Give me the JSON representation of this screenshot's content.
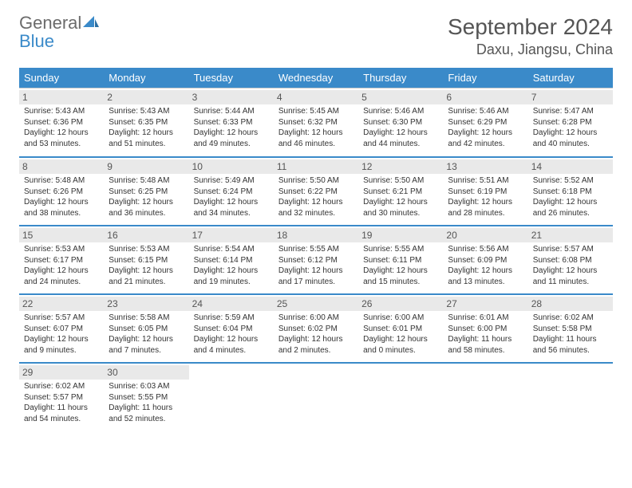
{
  "logo": {
    "word1": "General",
    "word2": "Blue"
  },
  "title": "September 2024",
  "location": "Daxu, Jiangsu, China",
  "colors": {
    "header_bg": "#3a8ac9",
    "header_text": "#ffffff",
    "daynum_bg": "#e9e9e9",
    "text": "#333333",
    "rule": "#3a8ac9"
  },
  "weekdays": [
    "Sunday",
    "Monday",
    "Tuesday",
    "Wednesday",
    "Thursday",
    "Friday",
    "Saturday"
  ],
  "weeks": [
    [
      {
        "n": "1",
        "sr": "Sunrise: 5:43 AM",
        "ss": "Sunset: 6:36 PM",
        "d1": "Daylight: 12 hours",
        "d2": "and 53 minutes."
      },
      {
        "n": "2",
        "sr": "Sunrise: 5:43 AM",
        "ss": "Sunset: 6:35 PM",
        "d1": "Daylight: 12 hours",
        "d2": "and 51 minutes."
      },
      {
        "n": "3",
        "sr": "Sunrise: 5:44 AM",
        "ss": "Sunset: 6:33 PM",
        "d1": "Daylight: 12 hours",
        "d2": "and 49 minutes."
      },
      {
        "n": "4",
        "sr": "Sunrise: 5:45 AM",
        "ss": "Sunset: 6:32 PM",
        "d1": "Daylight: 12 hours",
        "d2": "and 46 minutes."
      },
      {
        "n": "5",
        "sr": "Sunrise: 5:46 AM",
        "ss": "Sunset: 6:30 PM",
        "d1": "Daylight: 12 hours",
        "d2": "and 44 minutes."
      },
      {
        "n": "6",
        "sr": "Sunrise: 5:46 AM",
        "ss": "Sunset: 6:29 PM",
        "d1": "Daylight: 12 hours",
        "d2": "and 42 minutes."
      },
      {
        "n": "7",
        "sr": "Sunrise: 5:47 AM",
        "ss": "Sunset: 6:28 PM",
        "d1": "Daylight: 12 hours",
        "d2": "and 40 minutes."
      }
    ],
    [
      {
        "n": "8",
        "sr": "Sunrise: 5:48 AM",
        "ss": "Sunset: 6:26 PM",
        "d1": "Daylight: 12 hours",
        "d2": "and 38 minutes."
      },
      {
        "n": "9",
        "sr": "Sunrise: 5:48 AM",
        "ss": "Sunset: 6:25 PM",
        "d1": "Daylight: 12 hours",
        "d2": "and 36 minutes."
      },
      {
        "n": "10",
        "sr": "Sunrise: 5:49 AM",
        "ss": "Sunset: 6:24 PM",
        "d1": "Daylight: 12 hours",
        "d2": "and 34 minutes."
      },
      {
        "n": "11",
        "sr": "Sunrise: 5:50 AM",
        "ss": "Sunset: 6:22 PM",
        "d1": "Daylight: 12 hours",
        "d2": "and 32 minutes."
      },
      {
        "n": "12",
        "sr": "Sunrise: 5:50 AM",
        "ss": "Sunset: 6:21 PM",
        "d1": "Daylight: 12 hours",
        "d2": "and 30 minutes."
      },
      {
        "n": "13",
        "sr": "Sunrise: 5:51 AM",
        "ss": "Sunset: 6:19 PM",
        "d1": "Daylight: 12 hours",
        "d2": "and 28 minutes."
      },
      {
        "n": "14",
        "sr": "Sunrise: 5:52 AM",
        "ss": "Sunset: 6:18 PM",
        "d1": "Daylight: 12 hours",
        "d2": "and 26 minutes."
      }
    ],
    [
      {
        "n": "15",
        "sr": "Sunrise: 5:53 AM",
        "ss": "Sunset: 6:17 PM",
        "d1": "Daylight: 12 hours",
        "d2": "and 24 minutes."
      },
      {
        "n": "16",
        "sr": "Sunrise: 5:53 AM",
        "ss": "Sunset: 6:15 PM",
        "d1": "Daylight: 12 hours",
        "d2": "and 21 minutes."
      },
      {
        "n": "17",
        "sr": "Sunrise: 5:54 AM",
        "ss": "Sunset: 6:14 PM",
        "d1": "Daylight: 12 hours",
        "d2": "and 19 minutes."
      },
      {
        "n": "18",
        "sr": "Sunrise: 5:55 AM",
        "ss": "Sunset: 6:12 PM",
        "d1": "Daylight: 12 hours",
        "d2": "and 17 minutes."
      },
      {
        "n": "19",
        "sr": "Sunrise: 5:55 AM",
        "ss": "Sunset: 6:11 PM",
        "d1": "Daylight: 12 hours",
        "d2": "and 15 minutes."
      },
      {
        "n": "20",
        "sr": "Sunrise: 5:56 AM",
        "ss": "Sunset: 6:09 PM",
        "d1": "Daylight: 12 hours",
        "d2": "and 13 minutes."
      },
      {
        "n": "21",
        "sr": "Sunrise: 5:57 AM",
        "ss": "Sunset: 6:08 PM",
        "d1": "Daylight: 12 hours",
        "d2": "and 11 minutes."
      }
    ],
    [
      {
        "n": "22",
        "sr": "Sunrise: 5:57 AM",
        "ss": "Sunset: 6:07 PM",
        "d1": "Daylight: 12 hours",
        "d2": "and 9 minutes."
      },
      {
        "n": "23",
        "sr": "Sunrise: 5:58 AM",
        "ss": "Sunset: 6:05 PM",
        "d1": "Daylight: 12 hours",
        "d2": "and 7 minutes."
      },
      {
        "n": "24",
        "sr": "Sunrise: 5:59 AM",
        "ss": "Sunset: 6:04 PM",
        "d1": "Daylight: 12 hours",
        "d2": "and 4 minutes."
      },
      {
        "n": "25",
        "sr": "Sunrise: 6:00 AM",
        "ss": "Sunset: 6:02 PM",
        "d1": "Daylight: 12 hours",
        "d2": "and 2 minutes."
      },
      {
        "n": "26",
        "sr": "Sunrise: 6:00 AM",
        "ss": "Sunset: 6:01 PM",
        "d1": "Daylight: 12 hours",
        "d2": "and 0 minutes."
      },
      {
        "n": "27",
        "sr": "Sunrise: 6:01 AM",
        "ss": "Sunset: 6:00 PM",
        "d1": "Daylight: 11 hours",
        "d2": "and 58 minutes."
      },
      {
        "n": "28",
        "sr": "Sunrise: 6:02 AM",
        "ss": "Sunset: 5:58 PM",
        "d1": "Daylight: 11 hours",
        "d2": "and 56 minutes."
      }
    ],
    [
      {
        "n": "29",
        "sr": "Sunrise: 6:02 AM",
        "ss": "Sunset: 5:57 PM",
        "d1": "Daylight: 11 hours",
        "d2": "and 54 minutes."
      },
      {
        "n": "30",
        "sr": "Sunrise: 6:03 AM",
        "ss": "Sunset: 5:55 PM",
        "d1": "Daylight: 11 hours",
        "d2": "and 52 minutes."
      },
      {
        "empty": true
      },
      {
        "empty": true
      },
      {
        "empty": true
      },
      {
        "empty": true
      },
      {
        "empty": true
      }
    ]
  ]
}
